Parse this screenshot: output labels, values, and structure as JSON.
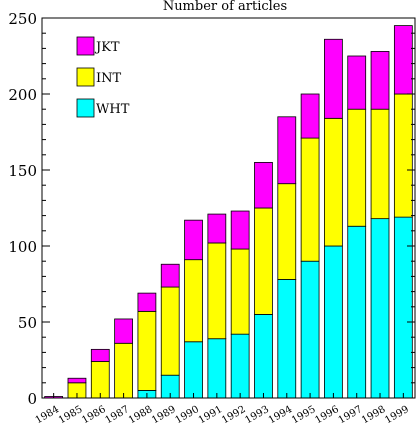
{
  "colors": {
    "WHT": "#00ffff",
    "INT": "#ffff00",
    "JKT": "#ff00ff",
    "axis": "#000000"
  },
  "chart_data": {
    "type": "bar",
    "stacked": true,
    "title": "Number of articles",
    "xlabel": "",
    "ylabel": "",
    "ylim": [
      0,
      250
    ],
    "yticks": [
      0,
      50,
      100,
      150,
      200,
      250
    ],
    "grid": false,
    "legend_position": "top-left",
    "categories": [
      "1984",
      "1985",
      "1986",
      "1987",
      "1988",
      "1989",
      "1990",
      "1991",
      "1992",
      "1993",
      "1994",
      "1995",
      "1996",
      "1997",
      "1998",
      "1999"
    ],
    "series": [
      {
        "name": "WHT",
        "values": [
          0,
          0,
          0,
          0,
          5,
          15,
          37,
          39,
          42,
          55,
          78,
          90,
          100,
          113,
          118,
          119
        ]
      },
      {
        "name": "INT",
        "values": [
          0,
          10,
          24,
          36,
          52,
          58,
          54,
          63,
          56,
          70,
          63,
          81,
          84,
          77,
          72,
          81
        ]
      },
      {
        "name": "JKT",
        "values": [
          1,
          3,
          8,
          16,
          12,
          15,
          26,
          19,
          25,
          30,
          44,
          29,
          52,
          35,
          38,
          45
        ]
      }
    ]
  }
}
